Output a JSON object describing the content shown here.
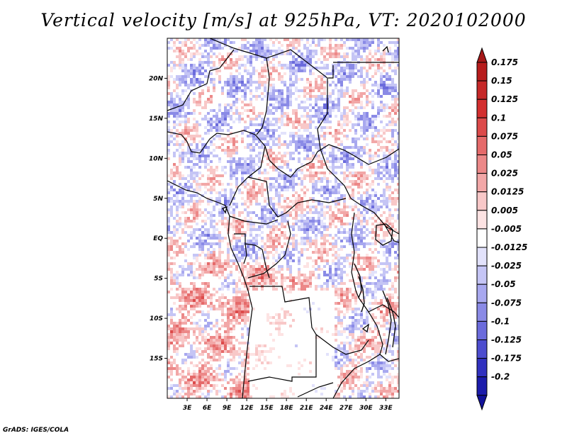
{
  "title": "Vertical velocity [m/s] at 925hPa, VT: 2020102000",
  "credit": "GrADS: IGES/COLA",
  "map": {
    "lon_range": [
      0,
      35
    ],
    "lat_range": [
      -20,
      25
    ],
    "lat_ticks": [
      {
        "value": 20,
        "label": "20N"
      },
      {
        "value": 15,
        "label": "15N"
      },
      {
        "value": 10,
        "label": "10N"
      },
      {
        "value": 5,
        "label": "5N"
      },
      {
        "value": 0,
        "label": "EQ"
      },
      {
        "value": -5,
        "label": "5S"
      },
      {
        "value": -10,
        "label": "10S"
      },
      {
        "value": -15,
        "label": "15S"
      }
    ],
    "lon_ticks": [
      {
        "value": 3,
        "label": "3E"
      },
      {
        "value": 6,
        "label": "6E"
      },
      {
        "value": 9,
        "label": "9E"
      },
      {
        "value": 12,
        "label": "12E"
      },
      {
        "value": 15,
        "label": "15E"
      },
      {
        "value": 18,
        "label": "18E"
      },
      {
        "value": 21,
        "label": "21E"
      },
      {
        "value": 24,
        "label": "24E"
      },
      {
        "value": 27,
        "label": "27E"
      },
      {
        "value": 30,
        "label": "30E"
      },
      {
        "value": 33,
        "label": "33E"
      }
    ]
  },
  "colorbar": {
    "levels": [
      {
        "label": "0.175",
        "color": "#b71c1c"
      },
      {
        "label": "0.15",
        "color": "#c62828"
      },
      {
        "label": "0.125",
        "color": "#d32f2f"
      },
      {
        "label": "0.1",
        "color": "#dc4a4a"
      },
      {
        "label": "0.075",
        "color": "#e56a6a"
      },
      {
        "label": "0.05",
        "color": "#ec8888"
      },
      {
        "label": "0.025",
        "color": "#f2a7a7"
      },
      {
        "label": "0.0125",
        "color": "#f8c8c8"
      },
      {
        "label": "0.005",
        "color": "#fde3e3"
      },
      {
        "label": "-0.005",
        "color": "#ffffff"
      },
      {
        "label": "-0.0125",
        "color": "#e2e2fb"
      },
      {
        "label": "-0.025",
        "color": "#c5c5f5"
      },
      {
        "label": "-0.05",
        "color": "#a8a8ef"
      },
      {
        "label": "-0.075",
        "color": "#8a8ae6"
      },
      {
        "label": "-0.1",
        "color": "#6b6bdc"
      },
      {
        "label": "-0.125",
        "color": "#4d4dcf"
      },
      {
        "label": "-0.175",
        "color": "#3131bf"
      },
      {
        "label": "-0.2",
        "color": "#1c1cab"
      }
    ],
    "top_color": "#a51818",
    "bottom_color": "#12129a"
  }
}
